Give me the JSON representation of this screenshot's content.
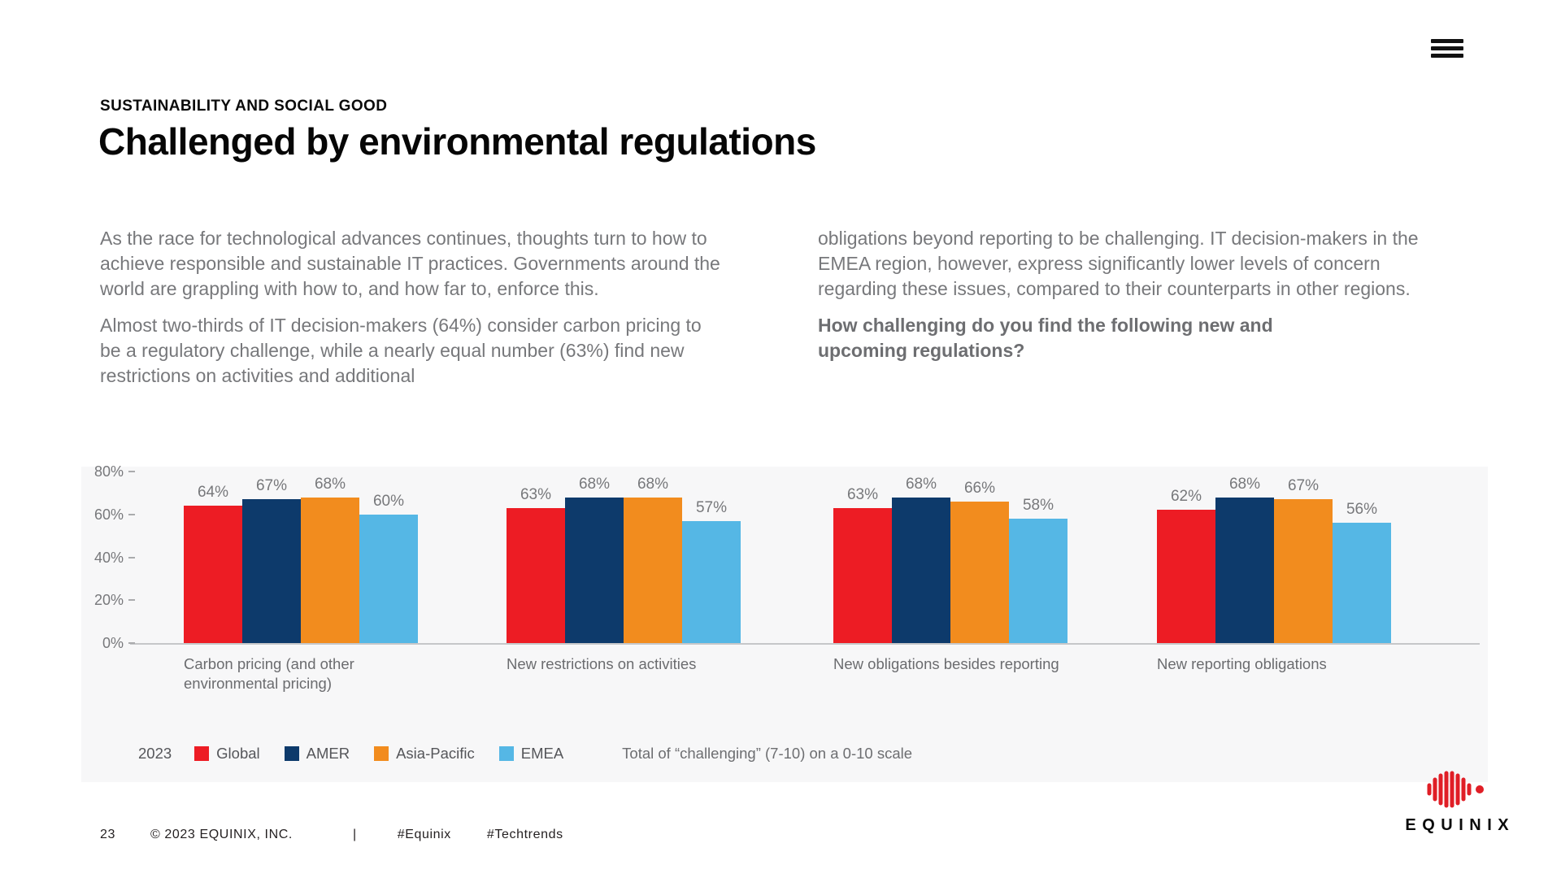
{
  "header": {
    "kicker": "SUSTAINABILITY AND SOCIAL GOOD",
    "title": "Challenged by environmental regulations"
  },
  "intro": {
    "left_paragraphs": [
      "As the race for technological advances continues, thoughts turn to how to achieve responsible and sustainable IT practices. Governments around the world are grappling with how to, and how far to, enforce this.",
      "Almost two-thirds of IT decision-makers (64%) consider carbon pricing to be a regulatory challenge, while a nearly equal number (63%) find new restrictions on activities and additional"
    ],
    "right_paragraph": "obligations beyond reporting to be challenging. IT decision-makers in the EMEA region, however, express significantly lower levels of concern regarding these issues, compared to their counterparts in other regions.",
    "question": "How challenging do you find the following new and upcoming regulations?"
  },
  "chart_data": {
    "type": "bar",
    "categories": [
      "Carbon pricing (and other\nenvironmental pricing)",
      "New restrictions on activities",
      "New obligations besides reporting",
      "New reporting obligations"
    ],
    "series": [
      {
        "name": "Global",
        "color": "#ed1c24",
        "values": [
          64,
          63,
          63,
          62
        ]
      },
      {
        "name": "AMER",
        "color": "#0d3a6b",
        "values": [
          67,
          68,
          68,
          68
        ]
      },
      {
        "name": "Asia-Pacific",
        "color": "#f28c1e",
        "values": [
          68,
          68,
          66,
          67
        ]
      },
      {
        "name": "EMEA",
        "color": "#55b7e5",
        "values": [
          60,
          57,
          58,
          56
        ]
      }
    ],
    "year_label": "2023",
    "note": "Total of “challenging” (7-10) on a 0-10 scale",
    "y_ticks": [
      "0%",
      "20%",
      "40%",
      "60%",
      "80%"
    ],
    "ylim": [
      0,
      80
    ],
    "value_suffix": "%",
    "grid": false,
    "legend_position": "bottom"
  },
  "footer": {
    "page_number": "23",
    "copyright": "© 2023 EQUINIX, INC.",
    "separator": "|",
    "hashtags": [
      "#Equinix",
      "#Techtrends"
    ]
  },
  "logo": {
    "brand": "EQUINIX"
  },
  "icons": {
    "menu": "hamburger-menu-icon"
  },
  "colors": {
    "panel_background": "#f7f7f8",
    "body_text": "#77787b",
    "heading_text": "#060606",
    "global": "#ed1c24",
    "amer": "#0d3a6b",
    "asia_pacific": "#f28c1e",
    "emea": "#55b7e5"
  }
}
